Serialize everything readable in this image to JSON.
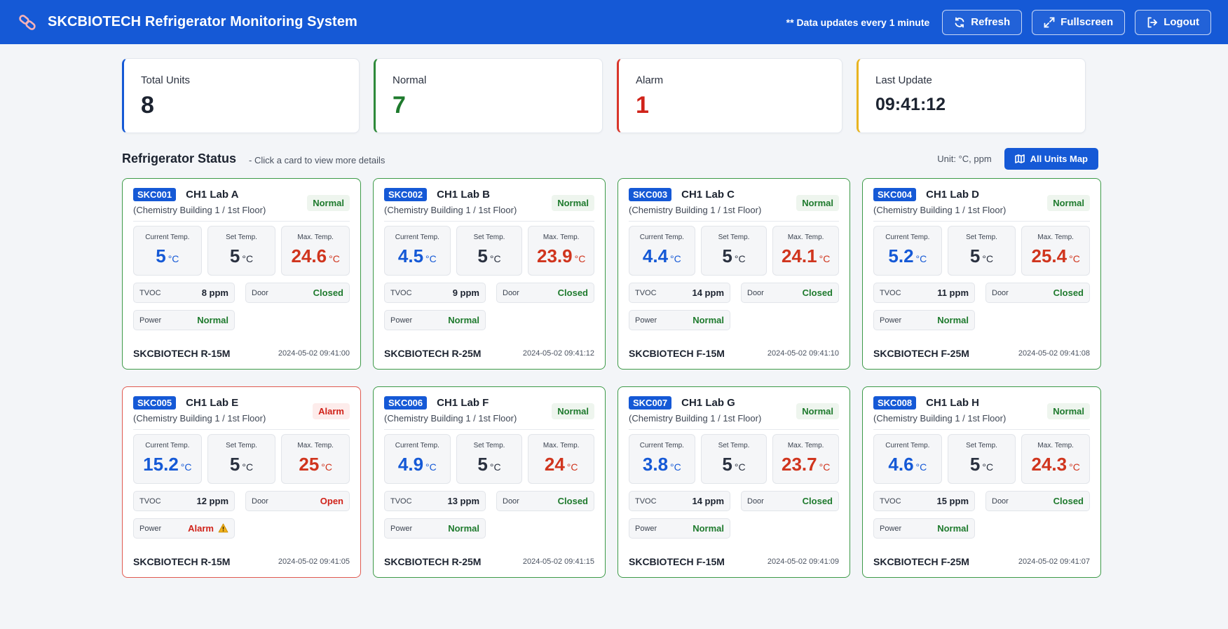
{
  "header": {
    "title": "SKCBIOTECH Refrigerator Monitoring System",
    "update_note": "** Data updates every 1 minute",
    "buttons": {
      "refresh": "Refresh",
      "fullscreen": "Fullscreen",
      "logout": "Logout"
    },
    "icons": {
      "logo": "link-chain-icon",
      "refresh": "refresh-icon",
      "fullscreen": "expand-icon",
      "logout": "logout-icon"
    }
  },
  "summary": {
    "total": {
      "label": "Total Units",
      "value": "8"
    },
    "normal": {
      "label": "Normal",
      "value": "7"
    },
    "alarm": {
      "label": "Alarm",
      "value": "1"
    },
    "last_update": {
      "label": "Last Update",
      "value": "09:41:12"
    }
  },
  "section": {
    "title": "Refrigerator Status",
    "hint": "- Click a card to view more details",
    "unit_note": "Unit: °C, ppm",
    "map_button": "All Units Map"
  },
  "labels": {
    "current": "Current Temp.",
    "set": "Set Temp.",
    "max": "Max. Temp.",
    "degree": "°C",
    "tvoc": "TVOC",
    "door": "Door",
    "power": "Power"
  },
  "colors": {
    "primary": "#1559d6",
    "normal": "#1e7a2d",
    "alarm": "#d0231a",
    "last_update_accent": "#e8b420"
  },
  "units": [
    {
      "id": "SKC001",
      "name": "CH1 Lab A",
      "location": "(Chemistry Building 1 / 1st Floor)",
      "status": "Normal",
      "current": "5",
      "set": "5",
      "max": "24.6",
      "tvoc": "8 ppm",
      "door": "Closed",
      "power": "Normal",
      "model": "SKCBIOTECH R-15M",
      "timestamp": "2024-05-02 09:41:00"
    },
    {
      "id": "SKC002",
      "name": "CH1 Lab B",
      "location": "(Chemistry Building 1 / 1st Floor)",
      "status": "Normal",
      "current": "4.5",
      "set": "5",
      "max": "23.9",
      "tvoc": "9 ppm",
      "door": "Closed",
      "power": "Normal",
      "model": "SKCBIOTECH R-25M",
      "timestamp": "2024-05-02 09:41:12"
    },
    {
      "id": "SKC003",
      "name": "CH1 Lab C",
      "location": "(Chemistry Building 1 / 1st Floor)",
      "status": "Normal",
      "current": "4.4",
      "set": "5",
      "max": "24.1",
      "tvoc": "14 ppm",
      "door": "Closed",
      "power": "Normal",
      "model": "SKCBIOTECH F-15M",
      "timestamp": "2024-05-02 09:41:10"
    },
    {
      "id": "SKC004",
      "name": "CH1 Lab D",
      "location": "(Chemistry Building 1 / 1st Floor)",
      "status": "Normal",
      "current": "5.2",
      "set": "5",
      "max": "25.4",
      "tvoc": "11 ppm",
      "door": "Closed",
      "power": "Normal",
      "model": "SKCBIOTECH F-25M",
      "timestamp": "2024-05-02 09:41:08"
    },
    {
      "id": "SKC005",
      "name": "CH1 Lab E",
      "location": "(Chemistry Building 1 / 1st Floor)",
      "status": "Alarm",
      "current": "15.2",
      "set": "5",
      "max": "25",
      "tvoc": "12 ppm",
      "door": "Open",
      "power": "Alarm",
      "power_icon": "warning-icon",
      "model": "SKCBIOTECH R-15M",
      "timestamp": "2024-05-02 09:41:05"
    },
    {
      "id": "SKC006",
      "name": "CH1 Lab F",
      "location": "(Chemistry Building 1 / 1st Floor)",
      "status": "Normal",
      "current": "4.9",
      "set": "5",
      "max": "24",
      "tvoc": "13 ppm",
      "door": "Closed",
      "power": "Normal",
      "model": "SKCBIOTECH R-25M",
      "timestamp": "2024-05-02 09:41:15"
    },
    {
      "id": "SKC007",
      "name": "CH1 Lab G",
      "location": "(Chemistry Building 1 / 1st Floor)",
      "status": "Normal",
      "current": "3.8",
      "set": "5",
      "max": "23.7",
      "tvoc": "14 ppm",
      "door": "Closed",
      "power": "Normal",
      "model": "SKCBIOTECH F-15M",
      "timestamp": "2024-05-02 09:41:09"
    },
    {
      "id": "SKC008",
      "name": "CH1 Lab H",
      "location": "(Chemistry Building 1 / 1st Floor)",
      "status": "Normal",
      "current": "4.6",
      "set": "5",
      "max": "24.3",
      "tvoc": "15 ppm",
      "door": "Closed",
      "power": "Normal",
      "model": "SKCBIOTECH F-25M",
      "timestamp": "2024-05-02 09:41:07"
    }
  ]
}
